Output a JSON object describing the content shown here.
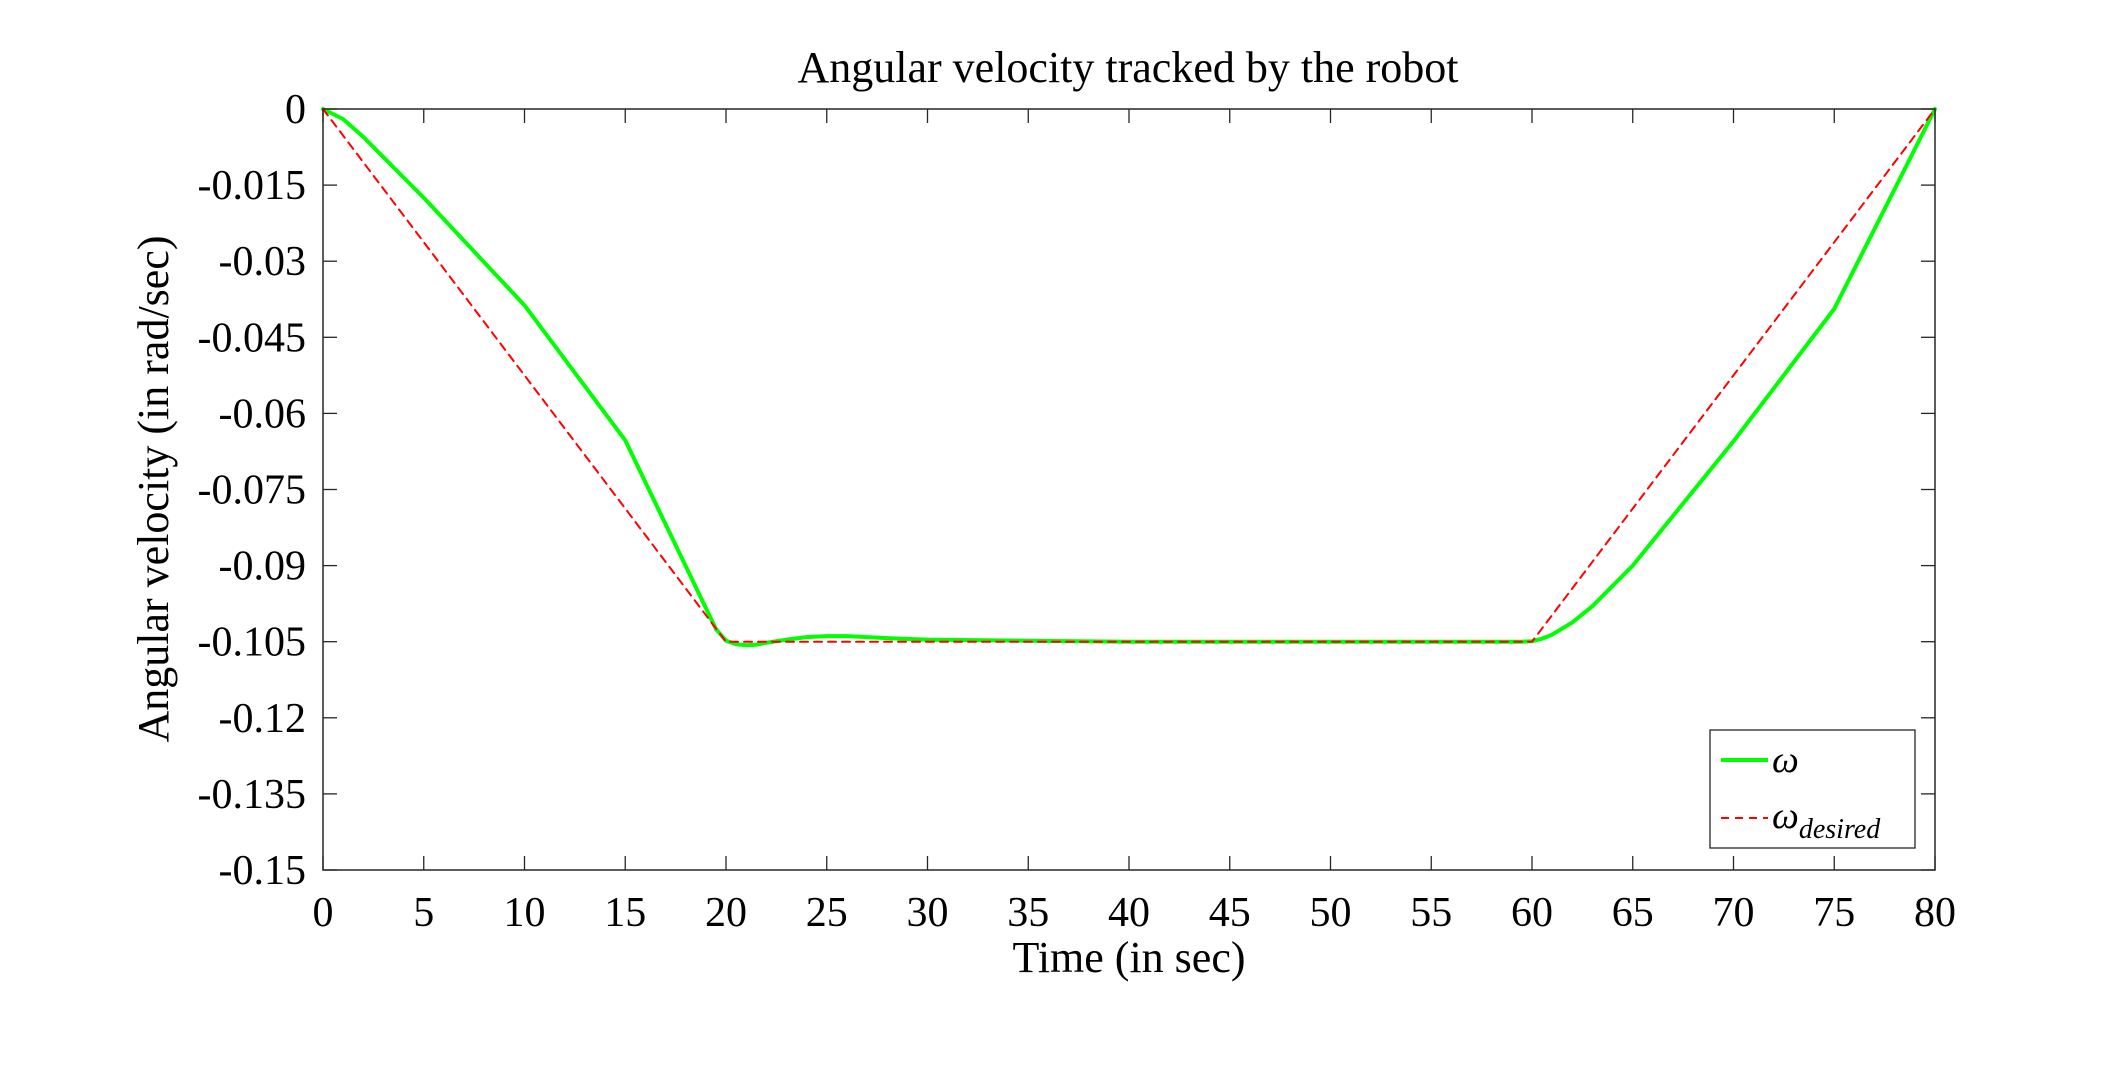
{
  "chart_data": {
    "type": "line",
    "title": "Angular velocity tracked by the robot",
    "xlabel": "Time (in sec)",
    "ylabel": "Angular velocity (in rad/sec)",
    "xlim": [
      0,
      80
    ],
    "ylim": [
      -0.15,
      0
    ],
    "x_ticks": [
      0,
      5,
      10,
      15,
      20,
      25,
      30,
      35,
      40,
      45,
      50,
      55,
      60,
      65,
      70,
      75,
      80
    ],
    "x_tick_labels": [
      "0",
      "5",
      "10",
      "15",
      "20",
      "25",
      "30",
      "35",
      "40",
      "45",
      "50",
      "55",
      "60",
      "65",
      "70",
      "75",
      "80"
    ],
    "y_ticks": [
      0,
      -0.015,
      -0.03,
      -0.045,
      -0.06,
      -0.075,
      -0.09,
      -0.105,
      -0.12,
      -0.135,
      -0.15
    ],
    "y_tick_labels": [
      "0",
      "-0.015",
      "-0.03",
      "-0.045",
      "-0.06",
      "-0.075",
      "-0.09",
      "-0.105",
      "-0.12",
      "-0.135",
      "-0.15"
    ],
    "grid": false,
    "legend_position": "bottom-right",
    "series": [
      {
        "name": "ω",
        "name_subscript": "",
        "color": "#00ff00",
        "style": "solid",
        "x": [
          0,
          1,
          2,
          3,
          4,
          5,
          10,
          15,
          19.5,
          20,
          20.5,
          21,
          21.5,
          22,
          23,
          24,
          25,
          26,
          27,
          28,
          30,
          35,
          40,
          45,
          50,
          55,
          59.5,
          60,
          60.5,
          61,
          62,
          63,
          65,
          70,
          75,
          80
        ],
        "y": [
          0,
          -0.002,
          -0.0055,
          -0.0095,
          -0.0135,
          -0.0175,
          -0.0387,
          -0.0653,
          -0.1025,
          -0.1048,
          -0.1055,
          -0.1057,
          -0.1056,
          -0.1052,
          -0.1046,
          -0.1041,
          -0.1039,
          -0.1039,
          -0.1041,
          -0.1043,
          -0.1046,
          -0.1048,
          -0.105,
          -0.105,
          -0.105,
          -0.105,
          -0.105,
          -0.1049,
          -0.1044,
          -0.1036,
          -0.1012,
          -0.098,
          -0.09,
          -0.0655,
          -0.0394,
          0
        ]
      },
      {
        "name": "ω",
        "name_subscript": "desired",
        "color": "#ff0000",
        "style": "dashed",
        "x": [
          0,
          20,
          60,
          80
        ],
        "y": [
          0,
          -0.105,
          -0.105,
          0
        ]
      }
    ]
  }
}
